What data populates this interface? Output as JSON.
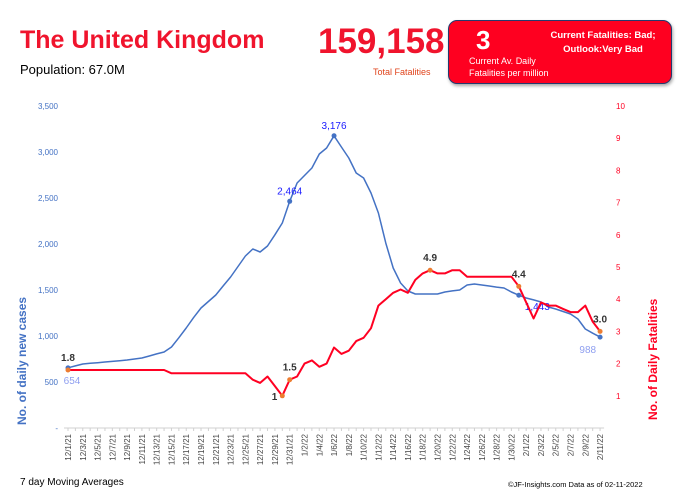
{
  "header": {
    "title": "The United Kingdom",
    "population": "Population: 67.0M",
    "total_fatalities": "159,158",
    "total_fatalities_label": "Total Fatalities"
  },
  "status_box": {
    "value": "3",
    "value_label_line1": "Current Av. Daily",
    "value_label_line2": "Fatalities per million",
    "status_line1": "Current Fatalities: Bad;",
    "status_line2": "Outlook:Very Bad",
    "color": "#fe0020"
  },
  "footer": {
    "left": "7 day Moving Averages",
    "right": "©JF-Insights.com  Data as of 02-11-2022"
  },
  "chart_data": {
    "type": "line",
    "x_range": [
      "12/1/21",
      "2/11/22"
    ],
    "x_tick_labels": [
      "12/1/21",
      "12/3/21",
      "12/5/21",
      "12/7/21",
      "12/9/21",
      "12/11/21",
      "12/13/21",
      "12/15/21",
      "12/17/21",
      "12/19/21",
      "12/21/21",
      "12/23/21",
      "12/25/21",
      "12/27/21",
      "12/29/21",
      "12/31/21",
      "1/2/22",
      "1/4/22",
      "1/6/22",
      "1/8/22",
      "1/10/22",
      "1/12/22",
      "1/14/22",
      "1/16/22",
      "1/18/22",
      "1/20/22",
      "1/22/22",
      "1/24/22",
      "1/26/22",
      "1/28/22",
      "1/30/22",
      "2/1/22",
      "2/3/22",
      "2/5/22",
      "2/7/22",
      "2/9/22",
      "2/11/22"
    ],
    "ylabel_left": "No. of daily new  cases",
    "ylabel_right": "No. of Daily Fatalities",
    "ylim_left": [
      0,
      3500
    ],
    "yticks_left": [
      "-",
      "500",
      "1,000",
      "1,500",
      "2,000",
      "2,500",
      "3,000",
      "3,500"
    ],
    "ylim_right": [
      0,
      10
    ],
    "yticks_right": [
      "1",
      "2",
      "3",
      "4",
      "5",
      "6",
      "7",
      "8",
      "9",
      "10"
    ],
    "grid": false,
    "series": [
      {
        "axis": "left",
        "color": "#4472c4",
        "values": [
          654,
          675,
          696,
          703,
          710,
          717,
          724,
          731,
          739,
          750,
          761,
          783,
          805,
          826,
          880,
          980,
          1087,
          1200,
          1304,
          1375,
          1446,
          1545,
          1641,
          1755,
          1870,
          1946,
          1913,
          1978,
          2100,
          2228,
          2464,
          2663,
          2745,
          2826,
          2978,
          3043,
          3176,
          3054,
          2935,
          2772,
          2717,
          2554,
          2337,
          2010,
          1739,
          1576,
          1489,
          1457,
          1457,
          1457,
          1457,
          1478,
          1490,
          1500,
          1554,
          1565,
          1554,
          1543,
          1532,
          1522,
          1478,
          1443,
          1413,
          1392,
          1370,
          1315,
          1293,
          1266,
          1239,
          1185,
          1076,
          1030,
          988
        ],
        "data_labels": [
          {
            "date": "12/1/21",
            "text": "654"
          },
          {
            "date": "12/31/21",
            "text": "2,464"
          },
          {
            "date": "1/6/22",
            "text": "3,176"
          },
          {
            "date": "1/31/22",
            "text": "1,443"
          },
          {
            "date": "2/11/22",
            "text": "988"
          }
        ]
      },
      {
        "axis": "right",
        "color": "#ff0022",
        "values": [
          1.8,
          1.8,
          1.8,
          1.8,
          1.8,
          1.8,
          1.8,
          1.8,
          1.8,
          1.8,
          1.8,
          1.8,
          1.8,
          1.8,
          1.7,
          1.7,
          1.7,
          1.7,
          1.7,
          1.7,
          1.7,
          1.7,
          1.7,
          1.7,
          1.7,
          1.5,
          1.4,
          1.6,
          1.3,
          1.0,
          1.5,
          1.6,
          2.0,
          2.1,
          1.9,
          2.0,
          2.5,
          2.3,
          2.4,
          2.7,
          2.8,
          3.1,
          3.8,
          4.0,
          4.2,
          4.3,
          4.2,
          4.6,
          4.8,
          4.9,
          4.8,
          4.8,
          4.9,
          4.9,
          4.7,
          4.7,
          4.7,
          4.7,
          4.7,
          4.7,
          4.7,
          4.4,
          3.9,
          3.4,
          3.9,
          3.8,
          3.8,
          3.7,
          3.6,
          3.6,
          3.8,
          3.3,
          3.0
        ],
        "data_labels": [
          {
            "date": "12/1/21",
            "text": "1.8"
          },
          {
            "date": "12/30/21",
            "text": "1"
          },
          {
            "date": "12/31/21",
            "text": "1.5"
          },
          {
            "date": "1/19/22",
            "text": "4.9"
          },
          {
            "date": "1/31/22",
            "text": "4.4"
          },
          {
            "date": "2/11/22",
            "text": "3.0"
          }
        ]
      }
    ]
  }
}
